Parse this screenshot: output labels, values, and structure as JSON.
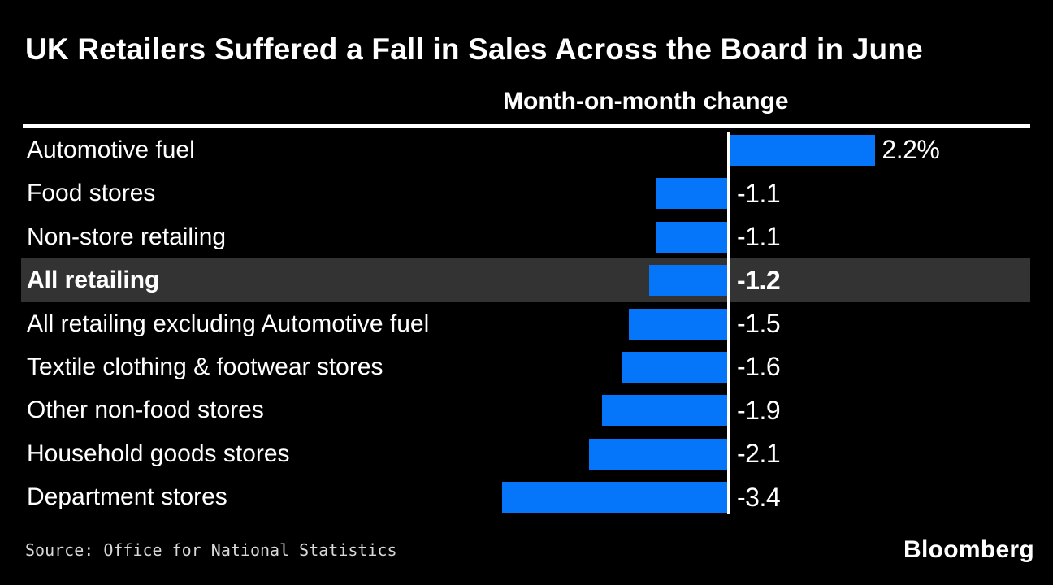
{
  "header": {
    "title": "UK Retailers Suffered a Fall in Sales Across the Board in June",
    "subtitle": "Month-on-month change"
  },
  "footer": {
    "source": "Source: Office for National Statistics",
    "brand": "Bloomberg"
  },
  "colors": {
    "background": "#000000",
    "bar": "#0575fa",
    "highlight_row_bg": "#333333",
    "text": "#ffffff",
    "source_text": "#d9d9d9",
    "axis_line": "#ffffff"
  },
  "chart_data": {
    "type": "bar",
    "orientation": "horizontal",
    "unit": "%",
    "title": "UK Retailers Suffered a Fall in Sales Across the Board in June",
    "subtitle": "Month-on-month change",
    "categories": [
      "Automotive fuel",
      "Food stores",
      "Non-store retailing",
      "All retailing",
      "All retailing excluding Automotive fuel",
      "Textile clothing & footwear stores",
      "Other non-food stores",
      "Household goods stores",
      "Department stores"
    ],
    "values": [
      2.2,
      -1.1,
      -1.1,
      -1.2,
      -1.5,
      -1.6,
      -1.9,
      -2.1,
      -3.4
    ],
    "value_labels": [
      "2.2%",
      "-1.1",
      "-1.1",
      "-1.2",
      "-1.5",
      "-1.6",
      "-1.9",
      "-2.1",
      "-3.4"
    ],
    "highlighted_index": 3,
    "highlighted_category": "All retailing",
    "zero_baseline": true,
    "gridlines": false,
    "legend": "none",
    "source": "Office for National Statistics"
  }
}
